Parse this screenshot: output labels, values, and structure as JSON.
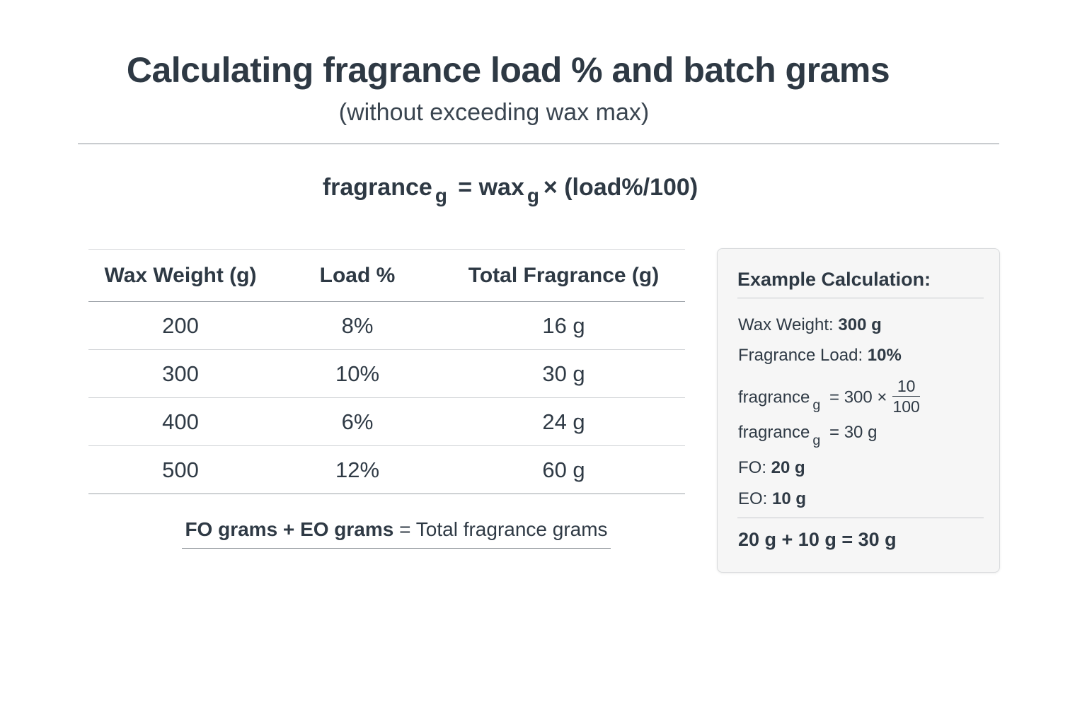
{
  "header": {
    "title": "Calculating fragrance load % and batch grams",
    "subtitle": "(without exceeding wax max)"
  },
  "formula": {
    "lhs": "fragrance",
    "lhs_sub": "g",
    "equals": "=",
    "wax": "wax",
    "wax_sub": "g",
    "rhs": "× (load%/100)"
  },
  "table": {
    "headers": [
      "Wax Weight (g)",
      "Load %",
      "Total Fragrance (g)"
    ],
    "rows": [
      [
        "200",
        "8%",
        "16 g"
      ],
      [
        "300",
        "10%",
        "30 g"
      ],
      [
        "400",
        "6%",
        "24 g"
      ],
      [
        "500",
        "12%",
        "60 g"
      ]
    ]
  },
  "sum_note": {
    "fo": "FO grams",
    "plus": "+",
    "eo": "EO grams",
    "equals": "=",
    "total": "Total fragrance grams"
  },
  "example": {
    "title": "Example Calculation:",
    "wax_label": "Wax Weight:",
    "wax_value": "300 g",
    "load_label": "Fragrance Load:",
    "load_value": "10%",
    "frag_word": "fragrance",
    "frag_sub": "g",
    "step1": "= 300 ×",
    "frac_num": "10",
    "frac_den": "100",
    "step2": "= 30 g",
    "fo_label": "FO:",
    "fo_value": "20 g",
    "eo_label": "EO:",
    "eo_value": "10 g",
    "total": "20 g + 10 g = 30 g"
  }
}
